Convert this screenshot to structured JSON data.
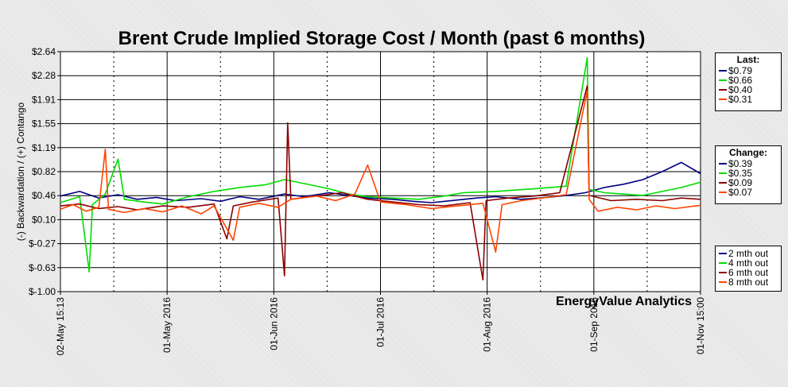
{
  "chart_data": {
    "type": "line",
    "title": "Brent Crude Implied Storage Cost / Month (past 6 months)",
    "ylabel": "(-) Backwardation / (+) Contango",
    "xlabel": "",
    "watermark": "EnergyValue Analytics",
    "ylim": [
      -1.0,
      2.64
    ],
    "y_ticks": [
      "$2.64",
      "$2.28",
      "$1.91",
      "$1.55",
      "$1.19",
      "$0.82",
      "$0.46",
      "$0.10",
      "$-0.27",
      "$-0.63",
      "$-1.00"
    ],
    "x_ticks": [
      "02-May 15:13",
      "01-May 2016",
      "01-Jun 2016",
      "01-Jul 2016",
      "01-Aug 2016",
      "01-Sep 2016",
      "01-Nov 15:00"
    ],
    "grid": true,
    "legend_position": "right",
    "last_panel": {
      "title": "Last:",
      "values": [
        "$0.79",
        "$0.66",
        "$0.40",
        "$0.31"
      ]
    },
    "change_panel": {
      "title": "Change:",
      "values": [
        "$0.39",
        "$0.35",
        "$0.09",
        "$0.07"
      ]
    },
    "series": [
      {
        "name": "2 mth out",
        "color": "#000080",
        "points": [
          [
            0,
            0.45
          ],
          [
            0.03,
            0.52
          ],
          [
            0.06,
            0.42
          ],
          [
            0.09,
            0.47
          ],
          [
            0.12,
            0.4
          ],
          [
            0.15,
            0.43
          ],
          [
            0.18,
            0.38
          ],
          [
            0.22,
            0.41
          ],
          [
            0.25,
            0.37
          ],
          [
            0.28,
            0.44
          ],
          [
            0.31,
            0.4
          ],
          [
            0.35,
            0.48
          ],
          [
            0.38,
            0.44
          ],
          [
            0.42,
            0.5
          ],
          [
            0.45,
            0.46
          ],
          [
            0.48,
            0.42
          ],
          [
            0.52,
            0.4
          ],
          [
            0.55,
            0.37
          ],
          [
            0.58,
            0.35
          ],
          [
            0.62,
            0.39
          ],
          [
            0.65,
            0.42
          ],
          [
            0.68,
            0.44
          ],
          [
            0.72,
            0.4
          ],
          [
            0.76,
            0.43
          ],
          [
            0.79,
            0.46
          ],
          [
            0.82,
            0.5
          ],
          [
            0.85,
            0.58
          ],
          [
            0.88,
            0.63
          ],
          [
            0.91,
            0.7
          ],
          [
            0.94,
            0.82
          ],
          [
            0.97,
            0.96
          ],
          [
            1.0,
            0.79
          ]
        ]
      },
      {
        "name": "4 mth out",
        "color": "#00dd00",
        "points": [
          [
            0,
            0.35
          ],
          [
            0.03,
            0.44
          ],
          [
            0.045,
            -0.7
          ],
          [
            0.05,
            0.32
          ],
          [
            0.07,
            0.48
          ],
          [
            0.09,
            1.01
          ],
          [
            0.1,
            0.4
          ],
          [
            0.13,
            0.36
          ],
          [
            0.16,
            0.33
          ],
          [
            0.2,
            0.44
          ],
          [
            0.24,
            0.52
          ],
          [
            0.28,
            0.58
          ],
          [
            0.32,
            0.62
          ],
          [
            0.35,
            0.7
          ],
          [
            0.38,
            0.64
          ],
          [
            0.42,
            0.56
          ],
          [
            0.45,
            0.48
          ],
          [
            0.48,
            0.44
          ],
          [
            0.52,
            0.42
          ],
          [
            0.56,
            0.4
          ],
          [
            0.6,
            0.45
          ],
          [
            0.63,
            0.5
          ],
          [
            0.68,
            0.52
          ],
          [
            0.74,
            0.56
          ],
          [
            0.79,
            0.6
          ],
          [
            0.823,
            2.55
          ],
          [
            0.826,
            0.55
          ],
          [
            0.85,
            0.5
          ],
          [
            0.88,
            0.48
          ],
          [
            0.91,
            0.46
          ],
          [
            0.94,
            0.52
          ],
          [
            0.97,
            0.58
          ],
          [
            1.0,
            0.66
          ]
        ]
      },
      {
        "name": "6 mth out",
        "color": "#8b0000",
        "points": [
          [
            0,
            0.3
          ],
          [
            0.03,
            0.33
          ],
          [
            0.06,
            0.26
          ],
          [
            0.09,
            0.29
          ],
          [
            0.12,
            0.24
          ],
          [
            0.16,
            0.3
          ],
          [
            0.2,
            0.28
          ],
          [
            0.24,
            0.33
          ],
          [
            0.26,
            -0.2
          ],
          [
            0.27,
            0.3
          ],
          [
            0.3,
            0.36
          ],
          [
            0.34,
            0.42
          ],
          [
            0.35,
            -0.76
          ],
          [
            0.355,
            1.56
          ],
          [
            0.36,
            0.4
          ],
          [
            0.4,
            0.45
          ],
          [
            0.44,
            0.5
          ],
          [
            0.48,
            0.4
          ],
          [
            0.52,
            0.36
          ],
          [
            0.56,
            0.32
          ],
          [
            0.6,
            0.3
          ],
          [
            0.64,
            0.35
          ],
          [
            0.66,
            -0.82
          ],
          [
            0.665,
            0.38
          ],
          [
            0.7,
            0.42
          ],
          [
            0.74,
            0.45
          ],
          [
            0.78,
            0.5
          ],
          [
            0.823,
            2.12
          ],
          [
            0.826,
            0.46
          ],
          [
            0.86,
            0.38
          ],
          [
            0.9,
            0.4
          ],
          [
            0.94,
            0.38
          ],
          [
            0.97,
            0.42
          ],
          [
            1.0,
            0.4
          ]
        ]
      },
      {
        "name": "8 mth out",
        "color": "#ff4400",
        "points": [
          [
            0,
            0.25
          ],
          [
            0.02,
            0.32
          ],
          [
            0.04,
            0.22
          ],
          [
            0.06,
            0.28
          ],
          [
            0.07,
            1.16
          ],
          [
            0.075,
            0.25
          ],
          [
            0.1,
            0.2
          ],
          [
            0.13,
            0.26
          ],
          [
            0.16,
            0.21
          ],
          [
            0.19,
            0.3
          ],
          [
            0.22,
            0.18
          ],
          [
            0.24,
            0.3
          ],
          [
            0.27,
            -0.22
          ],
          [
            0.28,
            0.28
          ],
          [
            0.31,
            0.34
          ],
          [
            0.34,
            0.28
          ],
          [
            0.36,
            0.4
          ],
          [
            0.4,
            0.45
          ],
          [
            0.43,
            0.38
          ],
          [
            0.46,
            0.48
          ],
          [
            0.48,
            0.92
          ],
          [
            0.5,
            0.36
          ],
          [
            0.54,
            0.32
          ],
          [
            0.58,
            0.26
          ],
          [
            0.62,
            0.3
          ],
          [
            0.66,
            0.34
          ],
          [
            0.68,
            -0.4
          ],
          [
            0.69,
            0.32
          ],
          [
            0.72,
            0.38
          ],
          [
            0.76,
            0.43
          ],
          [
            0.79,
            0.47
          ],
          [
            0.823,
            2.05
          ],
          [
            0.826,
            0.4
          ],
          [
            0.84,
            0.22
          ],
          [
            0.87,
            0.28
          ],
          [
            0.9,
            0.24
          ],
          [
            0.93,
            0.3
          ],
          [
            0.96,
            0.26
          ],
          [
            1.0,
            0.31
          ]
        ]
      }
    ]
  }
}
